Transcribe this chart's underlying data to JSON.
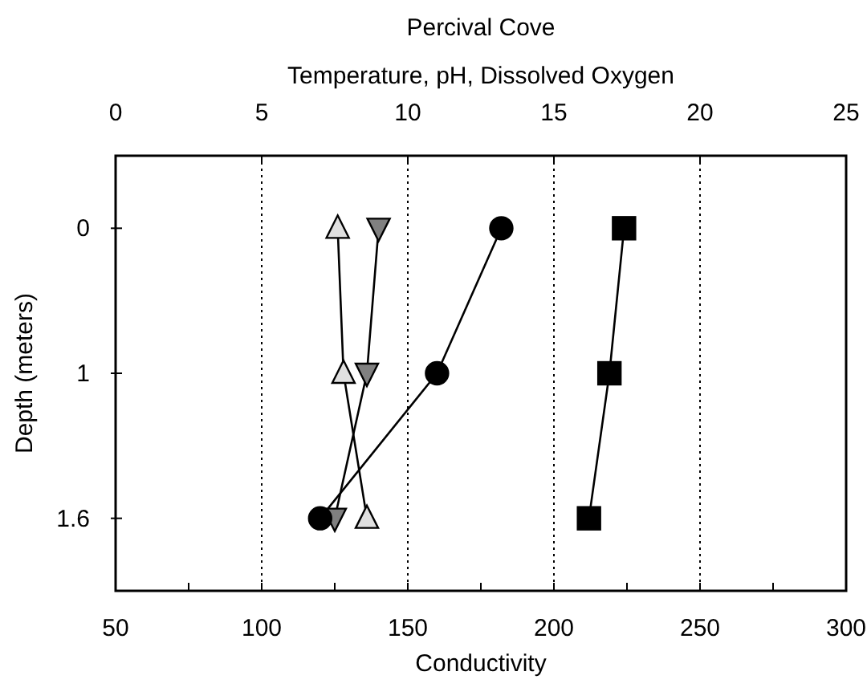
{
  "chart_data": {
    "type": "line",
    "orientation": "horizontal",
    "title": "Percival Cove",
    "xlabel": "Conductivity",
    "x2label": "Temperature, pH, Dissolved Oxygen",
    "ylabel": "Depth (meters)",
    "categories": [
      "0",
      "1",
      "1.6"
    ],
    "xlim": [
      50,
      300
    ],
    "xticks": [
      50,
      {
        "value": 75,
        "label": null
      },
      100,
      {
        "value": 125,
        "label": null
      },
      150,
      {
        "value": 175,
        "label": null
      },
      200,
      {
        "value": 225,
        "label": null
      },
      250,
      {
        "value": 275,
        "label": null
      },
      300
    ],
    "x2lim": [
      0,
      25
    ],
    "x2ticks": [
      0,
      5,
      10,
      15,
      20,
      25
    ],
    "grid": "x",
    "series": [
      {
        "color": "#e0e0e0",
        "marker": "triangle",
        "axis": "x2",
        "values": [
          7.6,
          7.8,
          8.6
        ]
      },
      {
        "color": "#808080",
        "marker": "triangle-down",
        "axis": "x2",
        "values": [
          9.0,
          8.6,
          7.5
        ]
      },
      {
        "color": "#000000",
        "marker": "circle",
        "axis": "x2",
        "values": [
          13.2,
          11.0,
          7.0
        ]
      },
      {
        "color": "#000000",
        "marker": "square",
        "values": [
          224,
          219,
          212
        ]
      }
    ]
  }
}
